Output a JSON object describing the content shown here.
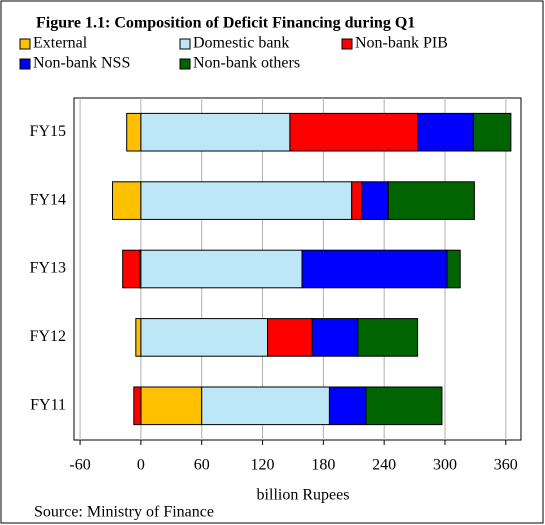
{
  "chart_data": {
    "type": "stacked-bar-horizontal",
    "title": "Figure 1.1: Composition of Deficit Financing during Q1",
    "categories": [
      "FY15",
      "FY14",
      "FY13",
      "FY12",
      "FY11"
    ],
    "series": [
      {
        "name": "External",
        "color": "#ffc000",
        "values": [
          -14,
          -28,
          -1,
          -5,
          60
        ]
      },
      {
        "name": "Domestic bank",
        "color": "#bde6f6",
        "values": [
          147,
          208,
          159,
          125,
          126
        ]
      },
      {
        "name": "Non-bank PIB",
        "color": "#ff0000",
        "values": [
          126,
          10,
          -17,
          44,
          -7
        ]
      },
      {
        "name": "Non-bank NSS",
        "color": "#0000ff",
        "values": [
          55,
          26,
          143,
          45,
          36
        ]
      },
      {
        "name": "Non-bank others",
        "color": "#006400",
        "values": [
          37,
          85,
          13,
          59,
          75
        ]
      }
    ],
    "xlim": [
      -66,
      375
    ],
    "xticks": [
      -60,
      0,
      60,
      120,
      180,
      240,
      300,
      360
    ],
    "xlabel": "billion Rupees",
    "source": "Source: Ministry of Finance",
    "grid": true
  }
}
